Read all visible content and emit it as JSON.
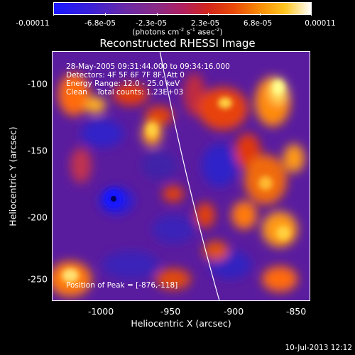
{
  "colorbar": {
    "ticks": [
      "-0.00011",
      "-6.8e-05",
      "-2.3e-05",
      "2.3e-05",
      "6.8e-05",
      "0.00011"
    ],
    "units": "(photons cm",
    "units_exp1": "-2",
    "units_mid": " s",
    "units_exp2": "-1",
    "units_mid2": " asec",
    "units_exp3": "-2",
    "units_end": ")"
  },
  "title": "Reconstructed RHESSI Image",
  "info": {
    "line1": "28-May-2005 09:31:44.000 to 09:34:16.000",
    "line2": "Detectors: 4F 5F 6F 7F 8F, Att 0",
    "line3": "Energy Range: 12.0 - 25.0 keV",
    "line4": "Clean    Total counts: 1.23E+03"
  },
  "peak": "Position of Peak = [-876,-118]",
  "axes": {
    "xlabel": "Heliocentric X (arcsec)",
    "ylabel": "Heliocentric Y (arcsec)",
    "xticks": [
      "-1000",
      "-950",
      "-900",
      "-850"
    ],
    "yticks": [
      "-100",
      "-150",
      "-200",
      "-250"
    ]
  },
  "timestamp": "10-Jul-2013 12:12"
}
